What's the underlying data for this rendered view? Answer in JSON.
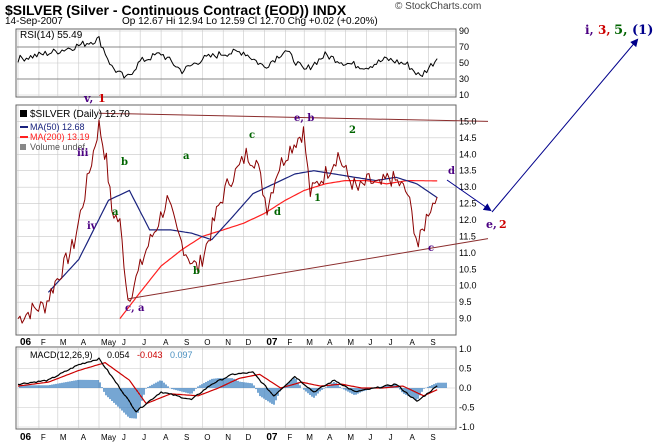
{
  "header": {
    "symbol_line": "$SILVER (Silver - Continuous Contract (EOD)) INDX",
    "date": "14-Sep-2007",
    "stats": "Op 12.67  Hi 12.94  Lo 12.59  Cl 12.70  Chg +0.02 (+0.20%)",
    "source": "© StockCharts.com"
  },
  "legend": {
    "main": "$SILVER (Daily) 12.70",
    "ma50": "MA(50) 12.68",
    "ma200": "MA(200) 13.19",
    "volume": "Volume undef"
  },
  "rsi": {
    "label": "RSI(14) 55.49",
    "ticks": [
      "90",
      "70",
      "50",
      "30",
      "10"
    ]
  },
  "macd": {
    "label_prefix": "MACD(12,26,9)",
    "v1": "0.054",
    "v2": "-0.043",
    "v3": "0.097",
    "ticks": [
      "1.0",
      "0.5",
      "0.0",
      "-0.5",
      "-1.0"
    ]
  },
  "x_labels": [
    "06",
    "F",
    "M",
    "A",
    "May",
    "J",
    "J",
    "A",
    "S",
    "O",
    "N",
    "D",
    "07",
    "F",
    "M",
    "A",
    "M",
    "J",
    "J",
    "A",
    "S"
  ],
  "wave_labels": {
    "v1": "v,",
    "v2": "1",
    "iii": "iii",
    "iv": "iv",
    "b1": "b",
    "a1": "a",
    "a2": "a",
    "c1": "c",
    "eb": "e, b",
    "two": "2",
    "ca": "c, a",
    "b2": "b",
    "d1": "d",
    "one": "1",
    "d2": "d",
    "c2": "c",
    "e2a": "e,",
    "e2b": "2",
    "top_i": "i,",
    "top_3": "3,",
    "top_5": "5,",
    "top_1": "(1)"
  },
  "colors": {
    "price": "#8b0000",
    "ma50": "#1a237e",
    "ma200": "#ff2020",
    "grid": "#c8c8c8",
    "trend": "#8b2d2d",
    "arrow": "#00008b",
    "wave_green": "#006400",
    "wave_purple": "#4b0082",
    "wave_red": "#cc0000"
  },
  "chart_data": [
    {
      "type": "line",
      "ylim": [
        8.5,
        15.5
      ],
      "yticks": [
        9.0,
        9.5,
        10.0,
        10.5,
        11.0,
        11.5,
        12.0,
        12.5,
        13.0,
        13.5,
        14.0,
        14.5,
        15.0
      ],
      "series": [
        {
          "name": "$SILVER",
          "x": [
            "2006-01-01",
            "2006-01-25",
            "2006-02-10",
            "2006-02-25",
            "2006-03-10",
            "2006-03-25",
            "2006-04-10",
            "2006-04-20",
            "2006-05-01",
            "2006-05-12",
            "2006-05-20",
            "2006-06-01",
            "2006-06-13",
            "2006-06-25",
            "2006-07-10",
            "2006-07-25",
            "2006-08-10",
            "2006-08-25",
            "2006-09-10",
            "2006-09-25",
            "2006-10-10",
            "2006-10-25",
            "2006-11-10",
            "2006-11-25",
            "2006-12-05",
            "2006-12-20",
            "2007-01-05",
            "2007-01-20",
            "2007-02-05",
            "2007-02-20",
            "2007-02-28",
            "2007-03-10",
            "2007-03-20",
            "2007-04-05",
            "2007-04-20",
            "2007-05-05",
            "2007-05-20",
            "2007-06-05",
            "2007-06-20",
            "2007-07-05",
            "2007-07-20",
            "2007-08-01",
            "2007-08-17",
            "2007-09-01",
            "2007-09-14"
          ],
          "values": [
            9.0,
            9.3,
            9.4,
            10.1,
            10.6,
            11.3,
            12.8,
            13.8,
            14.9,
            13.8,
            12.3,
            11.9,
            9.6,
            10.2,
            11.1,
            11.8,
            12.6,
            11.6,
            10.9,
            10.5,
            11.4,
            12.4,
            13.2,
            13.6,
            14.0,
            13.8,
            12.4,
            13.5,
            14.1,
            14.5,
            14.7,
            12.8,
            13.1,
            13.5,
            14.0,
            13.3,
            12.9,
            13.2,
            13.0,
            13.3,
            13.1,
            12.8,
            11.2,
            12.3,
            12.7
          ]
        },
        {
          "name": "MA(50)",
          "x": [
            "2006-02-15",
            "2006-04-01",
            "2006-05-15",
            "2006-06-15",
            "2006-07-15",
            "2006-08-15",
            "2006-09-15",
            "2006-10-15",
            "2006-11-15",
            "2006-12-15",
            "2007-01-15",
            "2007-02-15",
            "2007-03-15",
            "2007-04-15",
            "2007-05-15",
            "2007-06-15",
            "2007-07-15",
            "2007-08-15",
            "2007-09-14"
          ],
          "values": [
            9.8,
            10.8,
            12.6,
            12.9,
            11.7,
            11.7,
            11.6,
            11.4,
            12.1,
            12.8,
            13.1,
            13.4,
            13.5,
            13.4,
            13.3,
            13.2,
            13.3,
            13.1,
            12.68
          ]
        },
        {
          "name": "MA(200)",
          "x": [
            "2006-06-01",
            "2006-07-01",
            "2006-08-01",
            "2006-09-01",
            "2006-10-01",
            "2006-11-01",
            "2006-12-01",
            "2007-01-01",
            "2007-02-01",
            "2007-03-01",
            "2007-04-01",
            "2007-05-01",
            "2007-06-01",
            "2007-07-01",
            "2007-08-01",
            "2007-09-14"
          ],
          "values": [
            9.0,
            9.8,
            10.6,
            11.1,
            11.5,
            11.7,
            11.9,
            12.2,
            12.6,
            12.9,
            13.1,
            13.2,
            13.2,
            13.1,
            13.2,
            13.19
          ]
        }
      ],
      "trendlines": [
        {
          "x": [
            "2006-06-13",
            "2007-09-30"
          ],
          "values": [
            9.6,
            11.25
          ]
        },
        {
          "x": [
            "2006-05-01",
            "2007-09-30"
          ],
          "values": [
            15.25,
            15.0
          ]
        }
      ]
    },
    {
      "type": "line",
      "ylim": [
        10,
        90
      ],
      "yticks": [
        10,
        30,
        50,
        70,
        90
      ],
      "series": [
        {
          "name": "RSI(14)",
          "x": [
            "2006-01-01",
            "2006-02-01",
            "2006-03-01",
            "2006-04-01",
            "2006-05-01",
            "2006-05-20",
            "2006-06-10",
            "2006-07-01",
            "2006-08-01",
            "2006-09-01",
            "2006-10-01",
            "2006-11-01",
            "2006-12-01",
            "2007-01-01",
            "2007-02-01",
            "2007-03-01",
            "2007-04-01",
            "2007-05-01",
            "2007-06-01",
            "2007-07-01",
            "2007-08-01",
            "2007-08-20",
            "2007-09-14"
          ],
          "values": [
            55,
            60,
            65,
            72,
            80,
            45,
            30,
            52,
            62,
            40,
            55,
            62,
            64,
            45,
            66,
            40,
            60,
            50,
            45,
            55,
            48,
            33,
            55.49
          ]
        }
      ]
    },
    {
      "type": "line",
      "ylim": [
        -1.0,
        1.0
      ],
      "yticks": [
        -1.0,
        -0.5,
        0.0,
        0.5,
        1.0
      ],
      "series": [
        {
          "name": "MACD",
          "x": [
            "2006-01-01",
            "2006-02-15",
            "2006-04-01",
            "2006-05-01",
            "2006-06-01",
            "2006-06-25",
            "2006-08-01",
            "2006-09-15",
            "2006-10-15",
            "2006-11-15",
            "2006-12-15",
            "2007-01-15",
            "2007-02-15",
            "2007-03-15",
            "2007-04-15",
            "2007-05-15",
            "2007-06-15",
            "2007-07-15",
            "2007-08-15",
            "2007-09-14"
          ],
          "values": [
            0.1,
            0.2,
            0.6,
            0.75,
            0.0,
            -0.6,
            -0.1,
            -0.3,
            0.1,
            0.35,
            0.4,
            -0.2,
            0.3,
            -0.1,
            0.2,
            -0.1,
            0.0,
            0.1,
            -0.35,
            0.054
          ]
        },
        {
          "name": "Signal",
          "x": [
            "2006-01-01",
            "2006-02-15",
            "2006-04-01",
            "2006-05-10",
            "2006-06-15",
            "2006-07-10",
            "2006-08-15",
            "2006-09-25",
            "2006-10-25",
            "2006-11-25",
            "2006-12-25",
            "2007-01-25",
            "2007-02-25",
            "2007-03-25",
            "2007-04-25",
            "2007-05-25",
            "2007-06-25",
            "2007-07-25",
            "2007-08-25",
            "2007-09-14"
          ],
          "values": [
            0.05,
            0.15,
            0.45,
            0.65,
            0.2,
            -0.4,
            -0.15,
            -0.2,
            0.0,
            0.25,
            0.35,
            0.0,
            0.15,
            0.05,
            0.1,
            0.0,
            0.0,
            0.05,
            -0.2,
            -0.043
          ]
        }
      ]
    }
  ]
}
